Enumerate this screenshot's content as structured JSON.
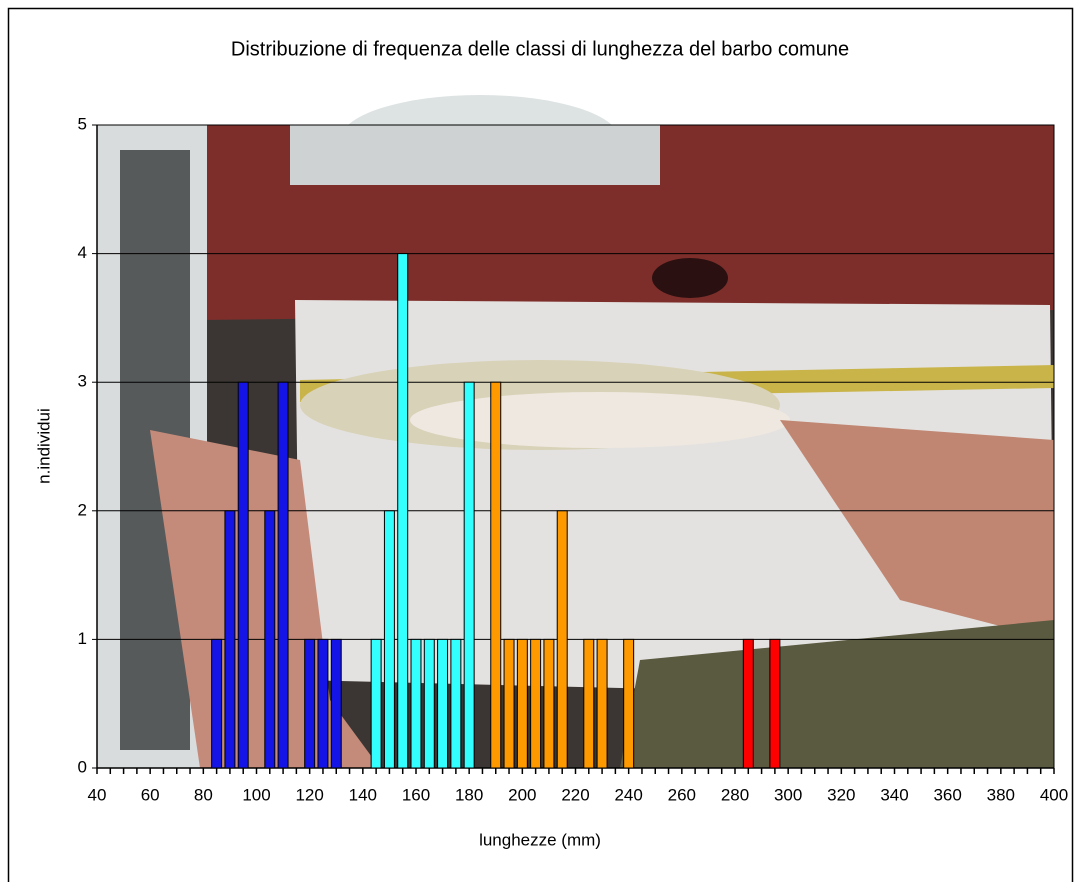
{
  "chart_data": {
    "type": "bar",
    "title": "Distribuzione di frequenza delle classi di lunghezza del barbo comune",
    "x_label": "lunghezze (mm)",
    "y_label": "n.individui",
    "series": [
      {
        "color": "#1414e6",
        "x": [
          85,
          90,
          95,
          105,
          110,
          120,
          125,
          130
        ],
        "values": [
          1,
          2,
          3,
          2,
          3,
          1,
          1,
          1
        ]
      },
      {
        "color": "#33ffff",
        "x": [
          145,
          150,
          155,
          160,
          165,
          170,
          175,
          180
        ],
        "values": [
          1,
          2,
          4,
          1,
          1,
          1,
          1,
          3
        ]
      },
      {
        "color": "#ff9900",
        "x": [
          190,
          195,
          200,
          205,
          210,
          215,
          225,
          230,
          240
        ],
        "values": [
          3,
          1,
          1,
          1,
          1,
          2,
          1,
          1,
          1
        ]
      },
      {
        "color": "#ff0000",
        "x": [
          285,
          295
        ],
        "values": [
          1,
          1
        ]
      }
    ],
    "xlim": [
      40,
      400
    ],
    "xticks": [
      40,
      60,
      80,
      100,
      120,
      140,
      160,
      180,
      200,
      220,
      240,
      260,
      280,
      300,
      320,
      340,
      360,
      380,
      400
    ],
    "ylim": [
      0,
      5
    ],
    "yticks": [
      0,
      1,
      2,
      3,
      4,
      5
    ],
    "grid": true
  }
}
